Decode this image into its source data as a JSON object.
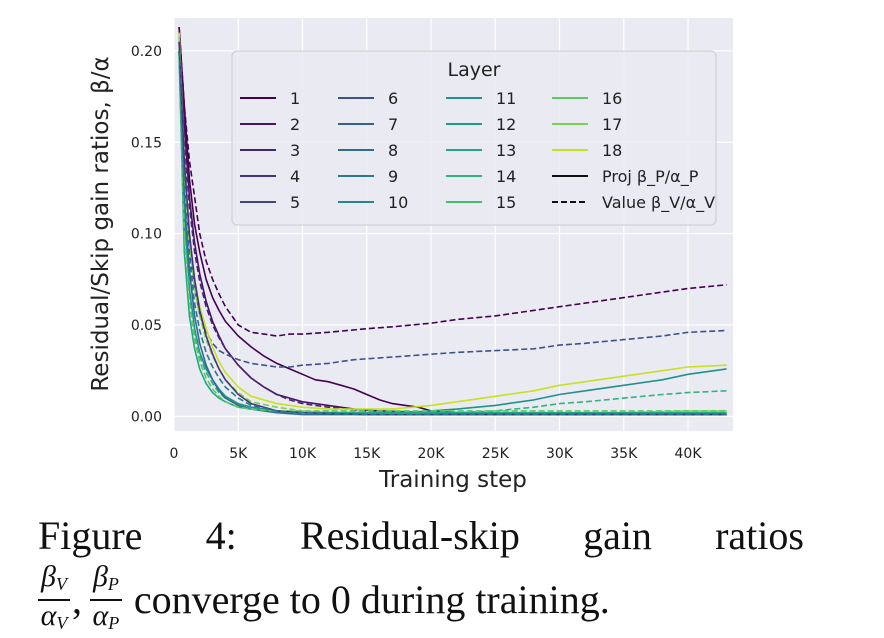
{
  "chart_data": {
    "type": "line",
    "title": "",
    "xlabel": "Training step",
    "ylabel": "Residual/Skip gain ratios, β/α",
    "xlim": [
      0,
      43500
    ],
    "ylim": [
      -0.008,
      0.218
    ],
    "x_ticks": [
      {
        "value": 0,
        "label": "0"
      },
      {
        "value": 5000,
        "label": "5K"
      },
      {
        "value": 10000,
        "label": "10K"
      },
      {
        "value": 15000,
        "label": "15K"
      },
      {
        "value": 20000,
        "label": "20K"
      },
      {
        "value": 25000,
        "label": "25K"
      },
      {
        "value": 30000,
        "label": "30K"
      },
      {
        "value": 35000,
        "label": "35K"
      },
      {
        "value": 40000,
        "label": "40K"
      }
    ],
    "y_ticks": [
      {
        "value": 0.0,
        "label": "0.00"
      },
      {
        "value": 0.05,
        "label": "0.05"
      },
      {
        "value": 0.1,
        "label": "0.10"
      },
      {
        "value": 0.15,
        "label": "0.15"
      },
      {
        "value": 0.2,
        "label": "0.20"
      }
    ],
    "grid": true,
    "legend": {
      "title": "Layer",
      "placement": "top-right",
      "layers": [
        "1",
        "2",
        "3",
        "4",
        "5",
        "6",
        "7",
        "8",
        "9",
        "10",
        "11",
        "12",
        "13",
        "14",
        "15",
        "16",
        "17",
        "18"
      ],
      "style_entries": [
        {
          "label": "Proj β_P/α_P",
          "dash": "solid"
        },
        {
          "label": "Value β_V/α_V",
          "dash": "dashed"
        }
      ]
    },
    "layer_colors": [
      "#440154",
      "#471365",
      "#482475",
      "#463480",
      "#414487",
      "#3b528b",
      "#355f8d",
      "#2f6c8e",
      "#2a788e",
      "#25848e",
      "#21918c",
      "#1e9c89",
      "#22a884",
      "#2fb47c",
      "#44bf70",
      "#5ec962",
      "#7ad151",
      "#c8e020"
    ],
    "series": [
      {
        "name": "Layer 1 Proj",
        "layer": 1,
        "style": "solid",
        "x": [
          400,
          800,
          1200,
          1600,
          2000,
          2500,
          3000,
          3500,
          4000,
          5000,
          6000,
          7000,
          8000,
          9000,
          10000,
          11000,
          12000,
          13000,
          14000,
          15000,
          16000,
          17000,
          18000,
          19000,
          20000,
          22000,
          25000,
          30000,
          35000,
          40000,
          43000
        ],
        "y": [
          0.213,
          0.17,
          0.13,
          0.105,
          0.09,
          0.075,
          0.065,
          0.058,
          0.052,
          0.044,
          0.038,
          0.033,
          0.029,
          0.026,
          0.023,
          0.02,
          0.019,
          0.017,
          0.015,
          0.012,
          0.009,
          0.007,
          0.006,
          0.005,
          0.003,
          0.002,
          0.001,
          0.001,
          0.001,
          0.001,
          0.001
        ]
      },
      {
        "name": "Layer 1 Value",
        "layer": 1,
        "style": "dashed",
        "x": [
          400,
          800,
          1200,
          1600,
          2000,
          2500,
          3000,
          3500,
          4000,
          5000,
          6000,
          7000,
          8000,
          9000,
          10000,
          12000,
          15000,
          17000,
          20000,
          22000,
          25000,
          28000,
          30000,
          32000,
          35000,
          38000,
          40000,
          43000
        ],
        "y": [
          0.213,
          0.17,
          0.14,
          0.12,
          0.1,
          0.085,
          0.075,
          0.067,
          0.06,
          0.05,
          0.046,
          0.045,
          0.044,
          0.045,
          0.045,
          0.046,
          0.048,
          0.049,
          0.051,
          0.053,
          0.055,
          0.058,
          0.06,
          0.062,
          0.065,
          0.068,
          0.07,
          0.072
        ]
      },
      {
        "name": "Layer 2 Proj",
        "layer": 2,
        "style": "solid",
        "x": [
          400,
          800,
          1200,
          1600,
          2000,
          2500,
          3000,
          3500,
          4000,
          5000,
          6000,
          7000,
          8000,
          9000,
          10000,
          12000,
          14000,
          16000,
          20000,
          25000,
          30000,
          35000,
          40000,
          43000
        ],
        "y": [
          0.21,
          0.16,
          0.12,
          0.095,
          0.078,
          0.063,
          0.052,
          0.044,
          0.037,
          0.028,
          0.021,
          0.016,
          0.012,
          0.01,
          0.008,
          0.006,
          0.004,
          0.003,
          0.002,
          0.001,
          0.001,
          0.001,
          0.001,
          0.001
        ]
      },
      {
        "name": "Layer 3 Value",
        "layer": 3,
        "style": "dashed",
        "x": [
          400,
          800,
          1200,
          1600,
          2000,
          2500,
          3000,
          3500,
          4000,
          5000,
          6000,
          7000,
          8000,
          9000,
          10000,
          12000,
          15000,
          18000,
          20000,
          25000,
          30000,
          35000,
          40000,
          43000
        ],
        "y": [
          0.205,
          0.15,
          0.115,
          0.09,
          0.074,
          0.06,
          0.05,
          0.043,
          0.037,
          0.028,
          0.021,
          0.016,
          0.012,
          0.009,
          0.007,
          0.005,
          0.003,
          0.002,
          0.002,
          0.001,
          0.001,
          0.001,
          0.001,
          0.001
        ]
      },
      {
        "name": "Layer 6 Value",
        "layer": 6,
        "style": "dashed",
        "x": [
          400,
          800,
          1200,
          1600,
          2000,
          2500,
          3000,
          3500,
          4000,
          5000,
          6000,
          7000,
          8000,
          9000,
          10000,
          12000,
          14000,
          16000,
          18000,
          20000,
          22000,
          25000,
          28000,
          30000,
          32000,
          35000,
          38000,
          40000,
          43000
        ],
        "y": [
          0.2,
          0.13,
          0.09,
          0.07,
          0.056,
          0.046,
          0.04,
          0.036,
          0.034,
          0.031,
          0.029,
          0.028,
          0.027,
          0.027,
          0.028,
          0.029,
          0.031,
          0.032,
          0.033,
          0.034,
          0.035,
          0.036,
          0.037,
          0.039,
          0.04,
          0.042,
          0.044,
          0.046,
          0.047
        ]
      },
      {
        "name": "Layer 11 Proj",
        "layer": 11,
        "style": "solid",
        "x": [
          400,
          800,
          1200,
          1600,
          2000,
          2500,
          3000,
          3500,
          4000,
          5000,
          6000,
          8000,
          10000,
          12000,
          15000,
          18000,
          20000,
          22000,
          25000,
          28000,
          30000,
          32000,
          35000,
          38000,
          40000,
          43000
        ],
        "y": [
          0.2,
          0.11,
          0.07,
          0.048,
          0.035,
          0.026,
          0.02,
          0.015,
          0.011,
          0.007,
          0.005,
          0.003,
          0.002,
          0.002,
          0.002,
          0.002,
          0.003,
          0.004,
          0.006,
          0.009,
          0.012,
          0.014,
          0.017,
          0.02,
          0.023,
          0.026
        ]
      },
      {
        "name": "Layer 14 Value",
        "layer": 14,
        "style": "dashed",
        "x": [
          400,
          800,
          1200,
          1600,
          2000,
          2500,
          3000,
          3500,
          4000,
          5000,
          6000,
          8000,
          10000,
          12000,
          15000,
          18000,
          20000,
          22000,
          25000,
          28000,
          30000,
          32000,
          35000,
          38000,
          40000,
          43000
        ],
        "y": [
          0.2,
          0.1,
          0.065,
          0.045,
          0.033,
          0.024,
          0.018,
          0.013,
          0.01,
          0.006,
          0.004,
          0.003,
          0.002,
          0.002,
          0.002,
          0.002,
          0.002,
          0.002,
          0.003,
          0.005,
          0.007,
          0.008,
          0.01,
          0.012,
          0.013,
          0.014
        ]
      },
      {
        "name": "Layer 18 Proj",
        "layer": 18,
        "style": "solid",
        "x": [
          400,
          800,
          1200,
          1600,
          2000,
          2500,
          3000,
          3500,
          4000,
          5000,
          6000,
          8000,
          10000,
          12000,
          15000,
          17000,
          20000,
          22000,
          25000,
          28000,
          30000,
          32000,
          35000,
          38000,
          40000,
          43000
        ],
        "y": [
          0.21,
          0.14,
          0.1,
          0.075,
          0.06,
          0.048,
          0.038,
          0.03,
          0.024,
          0.016,
          0.011,
          0.007,
          0.005,
          0.004,
          0.004,
          0.004,
          0.006,
          0.008,
          0.011,
          0.014,
          0.017,
          0.019,
          0.022,
          0.025,
          0.027,
          0.028
        ]
      },
      {
        "name": "Layer 17 Value",
        "layer": 17,
        "style": "dashed",
        "x": [
          400,
          800,
          1200,
          1600,
          2000,
          2500,
          3000,
          3500,
          4000,
          5000,
          6000,
          8000,
          10000,
          12000,
          15000,
          18000,
          20000,
          25000,
          30000,
          35000,
          40000,
          43000
        ],
        "y": [
          0.208,
          0.135,
          0.095,
          0.07,
          0.055,
          0.042,
          0.033,
          0.026,
          0.02,
          0.013,
          0.008,
          0.005,
          0.003,
          0.002,
          0.002,
          0.002,
          0.002,
          0.002,
          0.002,
          0.002,
          0.003,
          0.003
        ]
      },
      {
        "name": "Layer 8 Proj",
        "layer": 8,
        "style": "solid",
        "x": [
          400,
          800,
          1200,
          1600,
          2000,
          2500,
          3000,
          3500,
          4000,
          5000,
          6000,
          8000,
          10000,
          15000,
          20000,
          25000,
          30000,
          35000,
          40000,
          43000
        ],
        "y": [
          0.2,
          0.12,
          0.08,
          0.055,
          0.04,
          0.028,
          0.02,
          0.014,
          0.01,
          0.006,
          0.004,
          0.002,
          0.001,
          0.001,
          0.001,
          0.001,
          0.001,
          0.001,
          0.001,
          0.001
        ]
      },
      {
        "name": "Layer 13 Proj",
        "layer": 13,
        "style": "solid",
        "x": [
          400,
          800,
          1200,
          1600,
          2000,
          2500,
          3000,
          3500,
          4000,
          5000,
          6000,
          8000,
          10000,
          15000,
          20000,
          25000,
          30000,
          35000,
          40000,
          43000
        ],
        "y": [
          0.198,
          0.09,
          0.055,
          0.037,
          0.026,
          0.018,
          0.013,
          0.01,
          0.008,
          0.005,
          0.004,
          0.003,
          0.002,
          0.002,
          0.002,
          0.002,
          0.002,
          0.002,
          0.002,
          0.002
        ]
      },
      {
        "name": "Layer 16 Value",
        "layer": 16,
        "style": "dashed",
        "x": [
          400,
          800,
          1200,
          1600,
          2000,
          2500,
          3000,
          3500,
          4000,
          5000,
          6000,
          8000,
          10000,
          15000,
          20000,
          25000,
          30000,
          35000,
          40000,
          43000
        ],
        "y": [
          0.2,
          0.1,
          0.062,
          0.042,
          0.03,
          0.021,
          0.015,
          0.011,
          0.008,
          0.005,
          0.004,
          0.003,
          0.003,
          0.003,
          0.003,
          0.003,
          0.003,
          0.003,
          0.003,
          0.003
        ]
      },
      {
        "name": "Layer 4 Proj",
        "layer": 4,
        "style": "solid",
        "x": [
          400,
          800,
          1200,
          1600,
          2000,
          2500,
          3000,
          3500,
          4000,
          5000,
          6000,
          8000,
          10000,
          15000,
          20000,
          25000,
          30000,
          35000,
          40000,
          43000
        ],
        "y": [
          0.205,
          0.14,
          0.1,
          0.075,
          0.058,
          0.044,
          0.034,
          0.026,
          0.02,
          0.012,
          0.007,
          0.003,
          0.002,
          0.001,
          0.001,
          0.001,
          0.001,
          0.001,
          0.001,
          0.001
        ]
      },
      {
        "name": "Layer 9 Value",
        "layer": 9,
        "style": "dashed",
        "x": [
          400,
          800,
          1200,
          1600,
          2000,
          2500,
          3000,
          3500,
          4000,
          5000,
          6000,
          8000,
          10000,
          15000,
          20000,
          25000,
          30000,
          35000,
          40000,
          43000
        ],
        "y": [
          0.2,
          0.12,
          0.085,
          0.062,
          0.047,
          0.035,
          0.027,
          0.021,
          0.016,
          0.01,
          0.006,
          0.003,
          0.002,
          0.001,
          0.001,
          0.001,
          0.001,
          0.001,
          0.001,
          0.001
        ]
      }
    ]
  },
  "caption": {
    "figure_label": "Figure",
    "figure_number": "4:",
    "text_row1_a": "Residual-skip",
    "text_row1_b": "gain",
    "text_row1_c": "ratios",
    "frac1_num": "β",
    "frac1_num_sub": "V",
    "frac1_den": "α",
    "frac1_den_sub": "V",
    "separator": ",",
    "frac2_num": "β",
    "frac2_num_sub": "P",
    "frac2_den": "α",
    "frac2_den_sub": "P",
    "text_row2": "converge to 0 during training."
  }
}
